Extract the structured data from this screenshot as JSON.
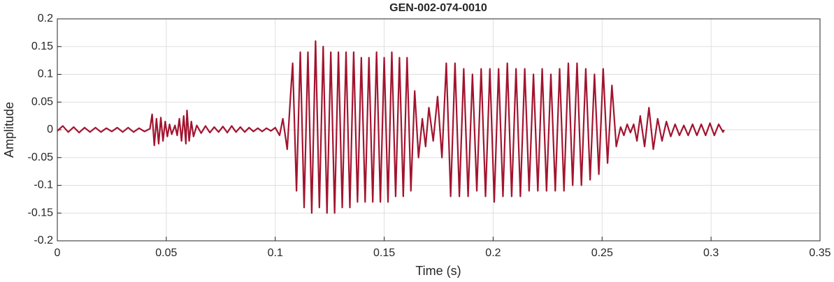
{
  "chart_data": {
    "type": "line",
    "title": "GEN-002-074-0010",
    "x_label": "Time (s)",
    "y_label": "Amplitude",
    "color": "#a2142f",
    "grid": true,
    "xlim": [
      0,
      0.35
    ],
    "xticks": [
      0,
      0.05,
      0.1,
      0.15,
      0.2,
      0.25,
      0.3,
      0.35
    ],
    "ylim": [
      -0.2,
      0.2
    ],
    "yticks": [
      -0.2,
      -0.15,
      -0.1,
      -0.05,
      0,
      0.05,
      0.1,
      0.15,
      0.2
    ],
    "x": [
      0,
      0.0025,
      0.005,
      0.0075,
      0.01,
      0.0125,
      0.015,
      0.0175,
      0.02,
      0.0225,
      0.025,
      0.0275,
      0.03,
      0.0325,
      0.035,
      0.0375,
      0.04,
      0.0425,
      0.0435,
      0.0445,
      0.0455,
      0.0465,
      0.0475,
      0.0485,
      0.0495,
      0.0505,
      0.0515,
      0.0525,
      0.054,
      0.055,
      0.056,
      0.057,
      0.058,
      0.059,
      0.0595,
      0.0605,
      0.0615,
      0.0625,
      0.064,
      0.066,
      0.068,
      0.07,
      0.072,
      0.074,
      0.076,
      0.078,
      0.08,
      0.082,
      0.084,
      0.086,
      0.088,
      0.09,
      0.092,
      0.094,
      0.096,
      0.098,
      0.1,
      0.102,
      0.1035,
      0.1055,
      0.107,
      0.108,
      0.10975,
      0.1115,
      0.11325,
      0.115,
      0.11675,
      0.1185,
      0.12025,
      0.122,
      0.12375,
      0.1255,
      0.12725,
      0.129,
      0.13075,
      0.1325,
      0.13425,
      0.136,
      0.13775,
      0.1395,
      0.14125,
      0.143,
      0.14475,
      0.1465,
      0.14825,
      0.15,
      0.15175,
      0.1535,
      0.15525,
      0.157,
      0.15875,
      0.1605,
      0.16225,
      0.164,
      0.16575,
      0.1675,
      0.169,
      0.1705,
      0.1725,
      0.1745,
      0.1765,
      0.1785,
      0.1805,
      0.1825,
      0.1845,
      0.1865,
      0.1885,
      0.1905,
      0.1925,
      0.1945,
      0.1965,
      0.1985,
      0.2005,
      0.2025,
      0.2045,
      0.2065,
      0.2085,
      0.2105,
      0.2125,
      0.2145,
      0.2165,
      0.2185,
      0.2205,
      0.2225,
      0.2245,
      0.2265,
      0.2285,
      0.2305,
      0.2325,
      0.2345,
      0.2365,
      0.2385,
      0.2405,
      0.2425,
      0.2445,
      0.2465,
      0.2485,
      0.2505,
      0.2525,
      0.2545,
      0.2565,
      0.2585,
      0.26,
      0.2615,
      0.263,
      0.2645,
      0.266,
      0.2675,
      0.2695,
      0.2715,
      0.2735,
      0.2755,
      0.2775,
      0.2795,
      0.2815,
      0.2835,
      0.2855,
      0.2875,
      0.2895,
      0.2915,
      0.2935,
      0.2955,
      0.2975,
      0.2995,
      0.3015,
      0.3035,
      0.3055,
      0.306
    ],
    "values": [
      -0.002,
      0.007,
      -0.004,
      0.005,
      -0.005,
      0.004,
      -0.004,
      0.004,
      -0.004,
      0.003,
      -0.003,
      0.004,
      -0.004,
      0.004,
      -0.004,
      0.003,
      -0.003,
      0.002,
      0.028,
      -0.028,
      0.02,
      -0.025,
      0.022,
      -0.02,
      0.015,
      -0.012,
      0.01,
      -0.008,
      0.008,
      -0.01,
      0.02,
      -0.02,
      0.025,
      -0.025,
      0.035,
      -0.02,
      0.015,
      -0.012,
      0.008,
      -0.006,
      0.007,
      -0.005,
      0.005,
      -0.004,
      0.006,
      -0.005,
      0.007,
      -0.004,
      0.005,
      -0.004,
      0.004,
      -0.003,
      0.003,
      -0.003,
      0.003,
      -0.002,
      0.004,
      -0.01,
      0.02,
      -0.035,
      0.06,
      0.12,
      -0.11,
      0.14,
      -0.14,
      0.14,
      -0.15,
      0.16,
      -0.14,
      0.15,
      -0.15,
      0.14,
      -0.15,
      0.14,
      -0.14,
      0.14,
      -0.14,
      0.14,
      -0.13,
      0.13,
      -0.13,
      0.13,
      -0.13,
      0.14,
      -0.13,
      0.13,
      -0.13,
      0.14,
      -0.12,
      0.13,
      -0.12,
      0.13,
      -0.11,
      0.07,
      -0.05,
      0.02,
      -0.03,
      0.04,
      -0.02,
      0.06,
      -0.05,
      0.12,
      -0.12,
      0.12,
      -0.12,
      0.11,
      -0.12,
      0.1,
      -0.11,
      0.11,
      -0.12,
      0.11,
      -0.13,
      0.11,
      -0.12,
      0.12,
      -0.12,
      0.11,
      -0.12,
      0.11,
      -0.11,
      0.1,
      -0.11,
      0.11,
      -0.11,
      0.1,
      -0.11,
      0.11,
      -0.11,
      0.12,
      -0.1,
      0.12,
      -0.1,
      0.11,
      -0.09,
      0.1,
      -0.08,
      0.11,
      -0.06,
      0.08,
      -0.03,
      0.005,
      -0.01,
      0.01,
      -0.005,
      0.01,
      -0.02,
      0.025,
      -0.03,
      0.04,
      -0.035,
      0.02,
      -0.02,
      0.015,
      -0.012,
      0.01,
      -0.01,
      0.008,
      -0.01,
      0.01,
      -0.01,
      0.01,
      -0.01,
      0.012,
      -0.01,
      0.01,
      -0.004,
      0
    ]
  }
}
